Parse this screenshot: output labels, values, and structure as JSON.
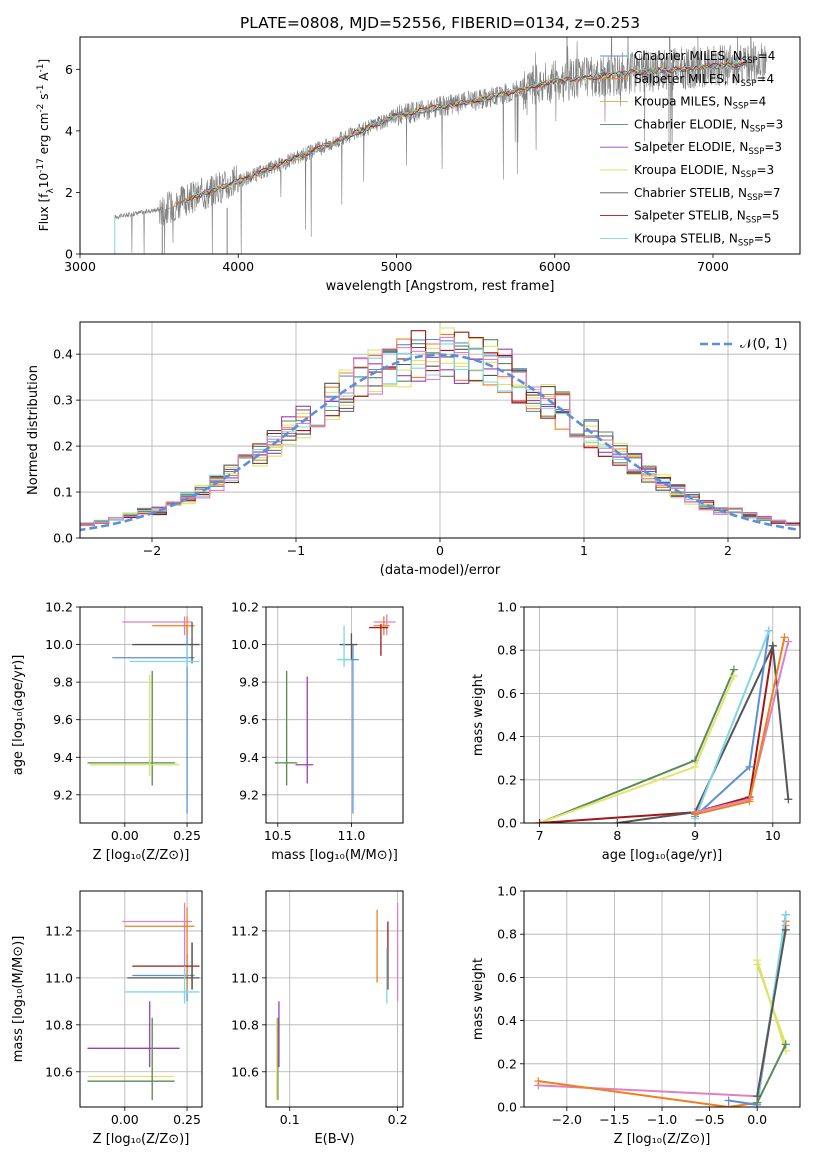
{
  "figure_title": "PLATE=0808, MJD=52556, FIBERID=0134, z=0.253",
  "colors": {
    "C1": "#5b8fd8",
    "C2": "#f07f1e",
    "C3": "#e2e56a",
    "C4": "#5a8a5a",
    "C5": "#9b3fb5",
    "C6": "#d9e26b",
    "C7": "#555555",
    "C8": "#a01818",
    "C9": "#7fd6e6",
    "C10": "#e27fc0",
    "spec": "#808080",
    "grid": "#b0b0b0"
  },
  "chart_data": [
    {
      "id": "spectrum",
      "type": "line",
      "xlabel": "wavelength [Angstrom, rest frame]",
      "ylabel": "Flux [f",
      "ylabel_sub": "λ",
      "ylabel_rest": "10",
      "ylabel_exp1": "-17",
      "ylabel_mid": " erg cm",
      "ylabel_exp2": "-2",
      "ylabel_mid2": " s",
      "ylabel_exp3": "-1",
      "ylabel_end": " A",
      "ylabel_exp4": "-1",
      "ylabel_close": "]",
      "xlim": [
        3000,
        7550
      ],
      "ylim": [
        0,
        7.05
      ],
      "xticks": [
        "3000",
        "4000",
        "5000",
        "6000",
        "7000"
      ],
      "yticks": [
        "0",
        "2",
        "4",
        "6"
      ],
      "data_start": 3220,
      "data_end": 7340,
      "continuum": [
        [
          3220,
          1.2
        ],
        [
          3550,
          1.5
        ],
        [
          3900,
          2.2
        ],
        [
          4000,
          2.35
        ],
        [
          4500,
          3.4
        ],
        [
          5000,
          4.5
        ],
        [
          5500,
          5.0
        ],
        [
          6000,
          5.6
        ],
        [
          6500,
          5.9
        ],
        [
          7000,
          6.1
        ],
        [
          7340,
          6.25
        ]
      ],
      "legend": [
        {
          "name": "Chabrier MILES",
          "n": "4",
          "color": "#5b8fd8"
        },
        {
          "name": "Salpeter MILES",
          "n": "4",
          "color": "#f07f1e"
        },
        {
          "name": "Kroupa MILES",
          "n": "4",
          "color": "#e8a640"
        },
        {
          "name": "Chabrier ELODIE",
          "n": "3",
          "color": "#5a8a5a"
        },
        {
          "name": "Salpeter ELODIE",
          "n": "3",
          "color": "#9b3fb5"
        },
        {
          "name": "Kroupa ELODIE",
          "n": "3",
          "color": "#d9e26b"
        },
        {
          "name": "Chabrier STELIB",
          "n": "7",
          "color": "#555555"
        },
        {
          "name": "Salpeter STELIB",
          "n": "5",
          "color": "#a01818"
        },
        {
          "name": "Kroupa STELIB",
          "n": "5",
          "color": "#7fd6e6"
        }
      ],
      "legend_n_label": "N",
      "legend_n_sub": "SSP"
    },
    {
      "id": "residuals",
      "type": "histogram",
      "xlabel": "(data-model)/error",
      "ylabel": "Normed distribution",
      "xlim": [
        -2.5,
        2.5
      ],
      "ylim": [
        0,
        0.47
      ],
      "xticks": [
        "−2",
        "−1",
        "0",
        "1",
        "2"
      ],
      "yticks": [
        "0.0",
        "0.1",
        "0.2",
        "0.3",
        "0.4"
      ],
      "bin_width": 0.1,
      "legend": "𝒩(0, 1)"
    },
    {
      "id": "age-vs-Z",
      "type": "scatter",
      "xlabel": "Z [log₁₀(Z/Z⊙)]",
      "ylabel": "age  [log₁₀(age/yr)]",
      "xlim": [
        -0.18,
        0.31
      ],
      "ylim": [
        9.05,
        10.2
      ],
      "xticks": [
        "0.00",
        "0.25"
      ],
      "yticks": [
        "9.2",
        "9.4",
        "9.6",
        "9.8",
        "10.0",
        "10.2"
      ],
      "points": [
        {
          "c": "C1",
          "x": 0.25,
          "y": 9.93,
          "xl": -0.05,
          "xh": 0.28,
          "yl": 9.1,
          "yh": 10.1
        },
        {
          "c": "C10",
          "x": 0.24,
          "y": 10.12,
          "xl": -0.01,
          "xh": 0.27,
          "yl": 10.05,
          "yh": 10.15
        },
        {
          "c": "C2",
          "x": 0.25,
          "y": 10.1,
          "xl": 0.11,
          "xh": 0.28,
          "yl": 10.05,
          "yh": 10.15
        },
        {
          "c": "C7",
          "x": 0.27,
          "y": 10.0,
          "xl": 0.03,
          "xh": 0.3,
          "yl": 9.9,
          "yh": 10.12
        },
        {
          "c": "C9",
          "x": 0.25,
          "y": 9.91,
          "xl": 0.02,
          "xh": 0.3,
          "yl": 9.88,
          "yh": 10.0
        },
        {
          "c": "C3",
          "x": 0.11,
          "y": 9.37,
          "xl": -0.15,
          "xh": 0.21,
          "yl": 9.25,
          "yh": 9.86
        },
        {
          "c": "C4",
          "x": 0.11,
          "y": 9.37,
          "xl": -0.15,
          "xh": 0.2,
          "yl": 9.25,
          "yh": 9.86
        },
        {
          "c": "C6",
          "x": 0.1,
          "y": 9.36,
          "xl": -0.14,
          "xh": 0.22,
          "yl": 9.3,
          "yh": 9.84
        }
      ]
    },
    {
      "id": "age-vs-mass",
      "type": "scatter",
      "xlabel": "mass [log₁₀(M/M⊙)]",
      "ylabel": "",
      "xlim": [
        10.42,
        11.35
      ],
      "ylim": [
        9.05,
        10.2
      ],
      "xticks": [
        "10.5",
        "11.0"
      ],
      "yticks": [
        "9.2",
        "9.4",
        "9.6",
        "9.8",
        "10.0",
        "10.2"
      ],
      "points": [
        {
          "c": "C1",
          "x": 11.01,
          "y": 9.92,
          "xl": 10.95,
          "xh": 11.05,
          "yl": 9.1,
          "yh": 10.0
        },
        {
          "c": "C10",
          "x": 11.24,
          "y": 10.12,
          "xl": 11.15,
          "xh": 11.3,
          "yl": 10.05,
          "yh": 10.16
        },
        {
          "c": "C2",
          "x": 11.22,
          "y": 10.1,
          "xl": 11.15,
          "xh": 11.26,
          "yl": 10.05,
          "yh": 10.15
        },
        {
          "c": "C8",
          "x": 11.2,
          "y": 10.09,
          "xl": 11.12,
          "xh": 11.25,
          "yl": 9.94,
          "yh": 10.11
        },
        {
          "c": "C7",
          "x": 11.0,
          "y": 10.0,
          "xl": 10.92,
          "xh": 11.04,
          "yl": 9.92,
          "yh": 10.06
        },
        {
          "c": "C9",
          "x": 10.95,
          "y": 9.92,
          "xl": 10.9,
          "xh": 11.0,
          "yl": 9.88,
          "yh": 10.1
        },
        {
          "c": "C3",
          "x": 10.56,
          "y": 9.37,
          "xl": 10.48,
          "xh": 10.64,
          "yl": 9.25,
          "yh": 9.86
        },
        {
          "c": "C4",
          "x": 10.56,
          "y": 9.37,
          "xl": 10.48,
          "xh": 10.63,
          "yl": 9.25,
          "yh": 9.86
        },
        {
          "c": "C5",
          "x": 10.7,
          "y": 9.36,
          "xl": 10.62,
          "xh": 10.74,
          "yl": 9.26,
          "yh": 9.83
        }
      ]
    },
    {
      "id": "weights-vs-age",
      "type": "line",
      "xlabel": "age  [log₁₀(age/yr)]",
      "ylabel": "mass weight",
      "xlim": [
        6.8,
        10.35
      ],
      "ylim": [
        0,
        1.0
      ],
      "xticks": [
        "7",
        "8",
        "9",
        "10"
      ],
      "yticks": [
        "0.0",
        "0.2",
        "0.4",
        "0.6",
        "0.8",
        "1.0"
      ],
      "series": [
        {
          "c": "C4",
          "x": [
            7.0,
            9.0,
            9.5
          ],
          "y": [
            0.0,
            0.29,
            0.71
          ]
        },
        {
          "c": "C3",
          "x": [
            7.0,
            9.0,
            9.5
          ],
          "y": [
            0.0,
            0.26,
            0.68
          ]
        },
        {
          "c": "C8",
          "x": [
            7.0,
            9.0,
            9.7,
            10.0
          ],
          "y": [
            0.0,
            0.05,
            0.12,
            0.82
          ]
        },
        {
          "c": "C7",
          "x": [
            8.0,
            9.0,
            10.0,
            10.2
          ],
          "y": [
            0.0,
            0.05,
            0.82,
            0.11
          ]
        },
        {
          "c": "C1",
          "x": [
            9.0,
            9.7,
            9.95
          ],
          "y": [
            0.03,
            0.26,
            0.89
          ]
        },
        {
          "c": "C9",
          "x": [
            9.0,
            9.95
          ],
          "y": [
            0.02,
            0.89
          ]
        },
        {
          "c": "C10",
          "x": [
            9.0,
            9.7,
            10.2
          ],
          "y": [
            0.05,
            0.11,
            0.84
          ]
        },
        {
          "c": "C2",
          "x": [
            9.0,
            9.7,
            10.15
          ],
          "y": [
            0.04,
            0.1,
            0.86
          ]
        }
      ]
    },
    {
      "id": "mass-vs-Z",
      "type": "scatter",
      "xlabel": "Z [log₁₀(Z/Z⊙)]",
      "ylabel": "mass [log₁₀(M/M⊙)]",
      "xlim": [
        -0.18,
        0.31
      ],
      "ylim": [
        10.45,
        11.37
      ],
      "xticks": [
        "0.00",
        "0.25"
      ],
      "yticks": [
        "10.6",
        "10.8",
        "11.0",
        "11.2"
      ],
      "points": [
        {
          "c": "C1",
          "x": 0.25,
          "y": 11.01,
          "xl": 0.03,
          "xh": 0.28,
          "yl": 10.9,
          "yh": 11.1
        },
        {
          "c": "C10",
          "x": 0.24,
          "y": 11.24,
          "xl": -0.01,
          "xh": 0.27,
          "yl": 11.0,
          "yh": 11.32
        },
        {
          "c": "C2",
          "x": 0.25,
          "y": 11.22,
          "xl": 0.0,
          "xh": 0.28,
          "yl": 10.95,
          "yh": 11.3
        },
        {
          "c": "C8",
          "x": 0.27,
          "y": 11.05,
          "xl": 0.03,
          "xh": 0.3,
          "yl": 10.95,
          "yh": 11.15
        },
        {
          "c": "C7",
          "x": 0.27,
          "y": 11.0,
          "xl": 0.01,
          "xh": 0.3,
          "yl": 10.95,
          "yh": 11.15
        },
        {
          "c": "C9",
          "x": 0.24,
          "y": 10.94,
          "xl": 0.0,
          "xh": 0.3,
          "yl": 10.89,
          "yh": 11.05
        },
        {
          "c": "C5",
          "x": 0.1,
          "y": 10.7,
          "xl": -0.15,
          "xh": 0.22,
          "yl": 10.62,
          "yh": 10.9
        },
        {
          "c": "C3",
          "x": 0.11,
          "y": 10.58,
          "xl": -0.15,
          "xh": 0.2,
          "yl": 10.48,
          "yh": 10.83
        },
        {
          "c": "C4",
          "x": 0.11,
          "y": 10.56,
          "xl": -0.15,
          "xh": 0.2,
          "yl": 10.48,
          "yh": 10.83
        }
      ]
    },
    {
      "id": "mass-vs-ebv",
      "type": "scatter",
      "xlabel": "E(B-V)",
      "ylabel": "",
      "xlim": [
        0.078,
        0.205
      ],
      "ylim": [
        10.45,
        11.37
      ],
      "xticks": [
        "0.1",
        "0.2"
      ],
      "yticks": [
        "10.6",
        "10.8",
        "11.0",
        "11.2"
      ],
      "points": [
        {
          "c": "C4",
          "x": 0.089,
          "y": 10.6,
          "yl": 10.48,
          "yh": 10.83
        },
        {
          "c": "C3",
          "x": 0.088,
          "y": 10.6,
          "yl": 10.48,
          "yh": 10.83
        },
        {
          "c": "C5",
          "x": 0.09,
          "y": 10.75,
          "yl": 10.62,
          "yh": 10.9
        },
        {
          "c": "C2",
          "x": 0.181,
          "y": 11.13,
          "yl": 10.98,
          "yh": 11.29
        },
        {
          "c": "C8",
          "x": 0.191,
          "y": 11.1,
          "yl": 10.95,
          "yh": 11.24
        },
        {
          "c": "C9",
          "x": 0.19,
          "y": 11.0,
          "yl": 10.89,
          "yh": 11.13
        },
        {
          "c": "C10",
          "x": 0.2,
          "y": 11.13,
          "yl": 10.9,
          "yh": 11.32
        }
      ]
    },
    {
      "id": "weights-vs-Z",
      "type": "line",
      "xlabel": "Z [log₁₀(Z/Z⊙)]",
      "ylabel": "mass weight",
      "xlim": [
        -2.45,
        0.45
      ],
      "ylim": [
        0,
        1.0
      ],
      "xticks": [
        "−2.0",
        "−1.5",
        "−1.0",
        "−0.5",
        "0.0"
      ],
      "yticks": [
        "0.0",
        "0.2",
        "0.4",
        "0.6",
        "0.8",
        "1.0"
      ],
      "series": [
        {
          "c": "C10",
          "x": [
            -2.3,
            0.0,
            0.3
          ],
          "y": [
            0.1,
            0.05,
            0.84
          ]
        },
        {
          "c": "C2",
          "x": [
            -2.3,
            -0.3,
            0.0,
            0.3
          ],
          "y": [
            0.12,
            0.0,
            0.02,
            0.86
          ]
        },
        {
          "c": "C1",
          "x": [
            -0.3,
            0.0,
            0.3
          ],
          "y": [
            0.03,
            0.01,
            0.89
          ]
        },
        {
          "c": "C9",
          "x": [
            0.0,
            0.3
          ],
          "y": [
            0.02,
            0.89
          ]
        },
        {
          "c": "C3",
          "x": [
            0.0,
            0.3
          ],
          "y": [
            0.68,
            0.26
          ]
        },
        {
          "c": "C6",
          "x": [
            0.0,
            0.3
          ],
          "y": [
            0.66,
            0.29
          ]
        },
        {
          "c": "C4",
          "x": [
            0.0,
            0.3
          ],
          "y": [
            0.02,
            0.29
          ]
        },
        {
          "c": "C7",
          "x": [
            0.0,
            0.3
          ],
          "y": [
            0.05,
            0.82
          ]
        }
      ]
    }
  ]
}
